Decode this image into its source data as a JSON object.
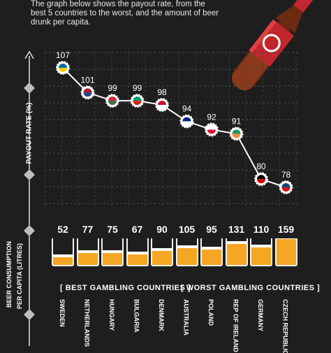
{
  "subtitle": "The graph below shows the payout rate, from the best 5 countries to the worst, and the amount of beer drunk per capita.",
  "axis": {
    "payout_label": "PAYOUT RATE (%)",
    "beer_label_line1": "BEER CONSUMPTION",
    "beer_label_line2": "PER CAPITA (LITRES)"
  },
  "groups": {
    "best": "[ BEST GAMBLING COUNTRIES ]",
    "worst": "[ WORST GAMBLING COUNTRIES ]"
  },
  "chart_data": [
    {
      "type": "line",
      "categories": [
        "SWEDEN",
        "NETHERLANDS",
        "HUNGARY",
        "BULGARIA",
        "DENMARK",
        "AUSTRALIA",
        "POLAND",
        "REP OF IRELAND",
        "GERMANY",
        "CZECH REPUBLIC"
      ],
      "values": [
        107,
        101,
        99,
        99,
        98,
        94,
        92,
        91,
        80,
        78
      ],
      "ylabel": "PAYOUT RATE (%)"
    },
    {
      "type": "bar",
      "categories": [
        "SWEDEN",
        "NETHERLANDS",
        "HUNGARY",
        "BULGARIA",
        "DENMARK",
        "AUSTRALIA",
        "POLAND",
        "REP OF IRELAND",
        "GERMANY",
        "CZECH REPUBLIC"
      ],
      "values": [
        52,
        77,
        75,
        67,
        90,
        105,
        95,
        131,
        110,
        159
      ],
      "ylabel": "BEER CONSUMPTION PER CAPITA (LITRES)"
    }
  ],
  "colors": {
    "background": "#1e1e1e",
    "beer": "#f5a623",
    "bottle": "#c0272d",
    "line": "#ffffff"
  }
}
